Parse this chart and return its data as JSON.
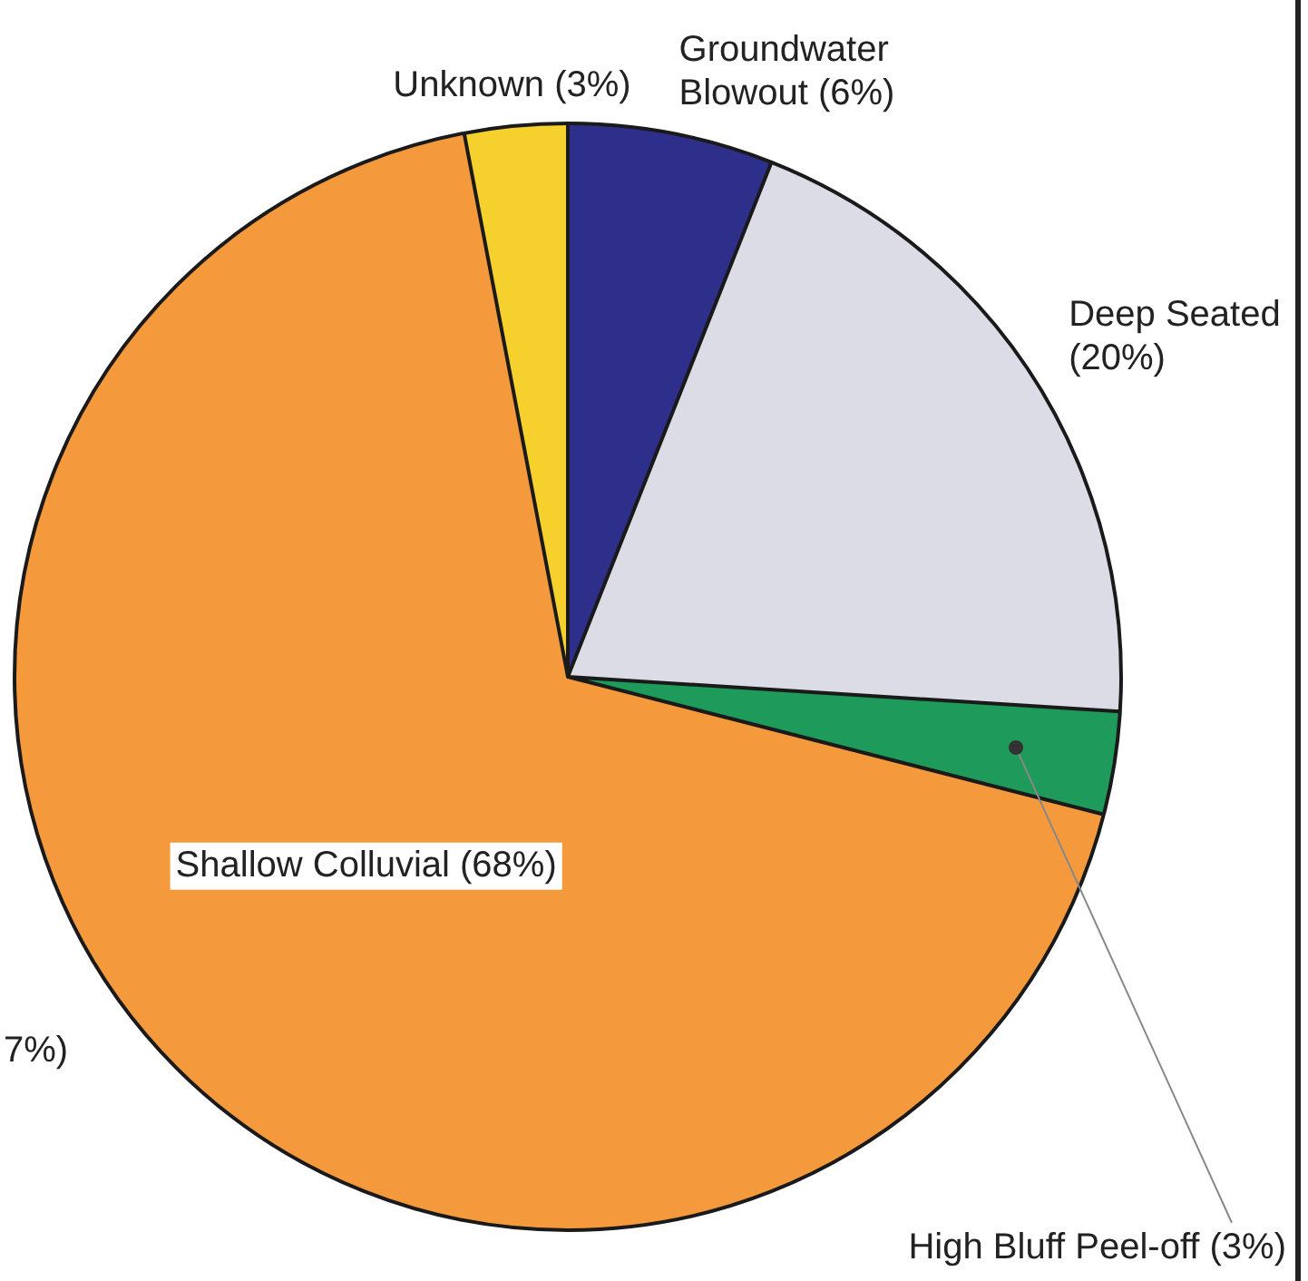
{
  "chart_data": {
    "type": "pie",
    "categories": [
      "Groundwater Blowout",
      "Deep Seated",
      "High Bluff Peel-off",
      "Shallow Colluvial",
      "Unknown"
    ],
    "values": [
      6,
      20,
      3,
      68,
      3
    ],
    "value_labels": [
      "(6%)",
      "(20%)",
      "(3%)",
      "(68%)",
      "(3%)"
    ],
    "colors": [
      "#2e2f8a",
      "#dcdce6",
      "#1e9a5a",
      "#f59a3c",
      "#f6d02c"
    ],
    "annotations": [
      "7%)"
    ]
  }
}
